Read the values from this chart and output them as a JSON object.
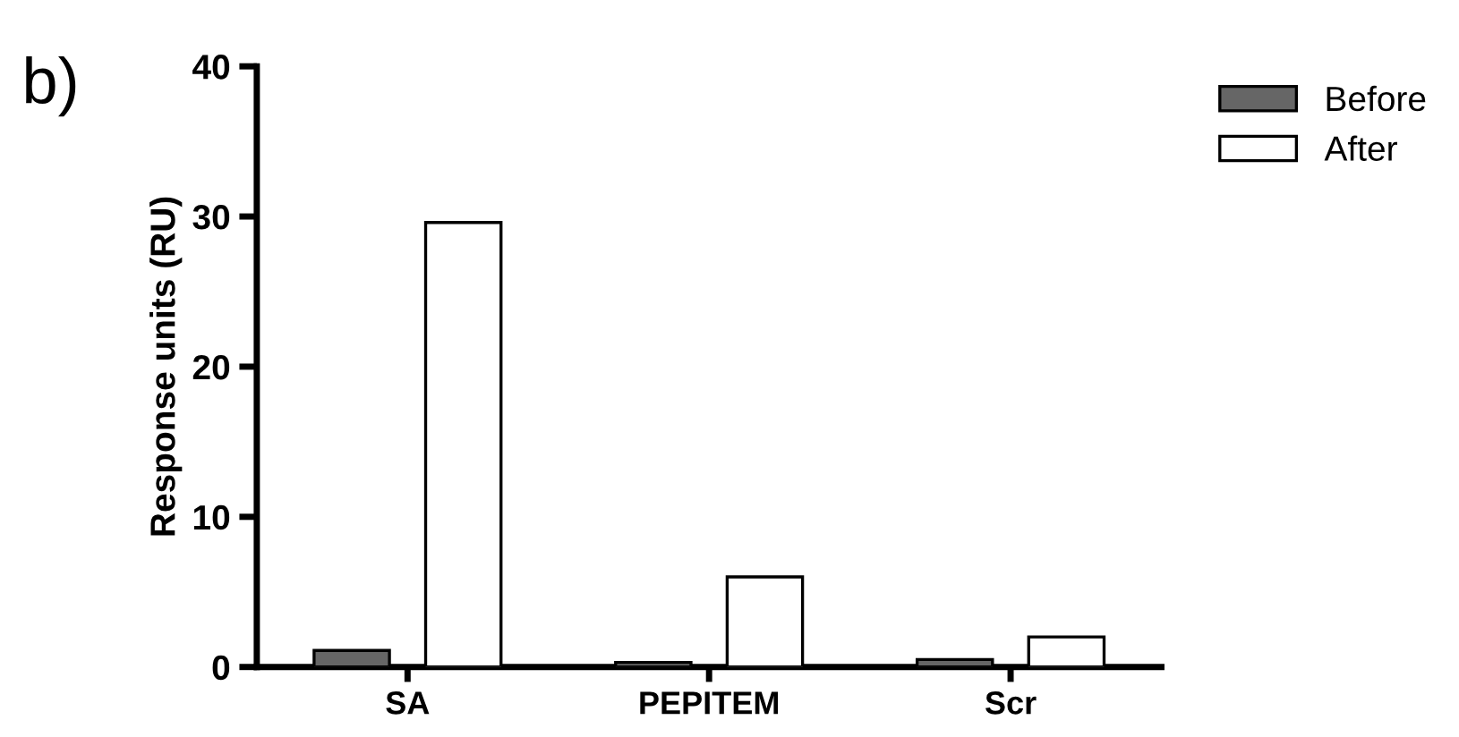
{
  "chart_data": {
    "type": "bar",
    "categories": [
      "SA",
      "PEPITEM",
      "Scr"
    ],
    "ylabel": "Response units (RU)",
    "ylim": [
      0,
      40
    ],
    "yticks": [
      0,
      10,
      20,
      30,
      40
    ],
    "grid": false,
    "legend": "top right",
    "annotations": [
      "b)"
    ],
    "series": [
      {
        "name": "Before",
        "color": "#666666",
        "values": [
          1.1,
          0.3,
          0.5
        ]
      },
      {
        "name": "After",
        "color": "#ffffff",
        "values": [
          29.6,
          6.0,
          2.0
        ]
      }
    ]
  }
}
